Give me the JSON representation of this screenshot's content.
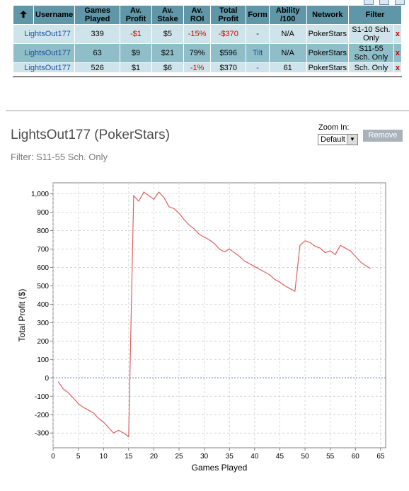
{
  "table": {
    "headers": [
      "Username",
      "Games Played",
      "Av. Profit",
      "Av. Stake",
      "Av. ROI",
      "Total Profit",
      "Form",
      "Ability /100",
      "Network",
      "Filter"
    ],
    "rows": [
      {
        "username": "LightsOut177",
        "games": "339",
        "av_profit": "-$1",
        "av_stake": "$5",
        "av_roi": "-15%",
        "total_profit": "-$370",
        "form": "-",
        "ability": "N/A",
        "network": "PokerStars",
        "filter": "S1-10 Sch. Only",
        "remove": "x"
      },
      {
        "username": "LightsOut177",
        "games": "63",
        "av_profit": "$9",
        "av_stake": "$21",
        "av_roi": "79%",
        "total_profit": "$596",
        "form": "Tilt",
        "ability": "N/A",
        "network": "PokerStars",
        "filter": "S11-55 Sch. Only",
        "remove": "x"
      },
      {
        "username": "LightsOut177",
        "games": "526",
        "av_profit": "$1",
        "av_stake": "$6",
        "av_roi": "-1%",
        "total_profit": "$370",
        "form": "-",
        "ability": "61",
        "network": "PokerStars",
        "filter": "Sch. Only",
        "remove": "x"
      }
    ]
  },
  "detail": {
    "title": "LightsOut177 (PokerStars)",
    "filter": "Filter: S11-55 Sch. Only",
    "zoom_label": "Zoom In:",
    "zoom_value": "Default",
    "remove_label": "Remove"
  },
  "colors": {
    "line": "#e06060",
    "zero_line": "#5a6aa8",
    "grid": "#c8c8c8"
  },
  "chart_data": {
    "type": "line",
    "xlabel": "Games Played",
    "ylabel": "Total Profit ($)",
    "xlim": [
      0,
      66
    ],
    "ylim": [
      -380,
      1060
    ],
    "x_ticks": [
      0,
      5,
      10,
      15,
      20,
      25,
      30,
      35,
      40,
      45,
      50,
      55,
      60,
      65
    ],
    "y_ticks": [
      -300,
      -200,
      -100,
      0,
      100,
      200,
      300,
      400,
      500,
      600,
      700,
      800,
      900,
      1000
    ],
    "y_tick_labels": [
      "-300",
      "-200",
      "-100",
      "0",
      "100",
      "200",
      "300",
      "400",
      "500",
      "600",
      "700",
      "800",
      "900",
      "1,000"
    ],
    "grid": true,
    "series": [
      {
        "x": [
          1,
          2,
          3,
          4,
          5,
          6,
          7,
          8,
          9,
          10,
          11,
          12,
          13,
          14,
          15,
          16,
          17,
          18,
          19,
          20,
          21,
          22,
          23,
          24,
          25,
          26,
          27,
          28,
          29,
          30,
          31,
          32,
          33,
          34,
          35,
          36,
          37,
          38,
          39,
          40,
          41,
          42,
          43,
          44,
          45,
          46,
          47,
          48,
          49,
          50,
          51,
          52,
          53,
          54,
          55,
          56,
          57,
          58,
          59,
          60,
          61,
          62,
          63
        ],
        "y": [
          -20,
          -60,
          -80,
          -110,
          -140,
          -160,
          -175,
          -190,
          -220,
          -240,
          -270,
          -300,
          -285,
          -300,
          -320,
          990,
          960,
          1010,
          990,
          970,
          1010,
          980,
          930,
          920,
          895,
          860,
          830,
          810,
          780,
          765,
          750,
          730,
          700,
          685,
          700,
          680,
          660,
          635,
          620,
          605,
          590,
          575,
          560,
          535,
          520,
          500,
          485,
          470,
          720,
          745,
          735,
          715,
          705,
          680,
          690,
          670,
          720,
          705,
          690,
          660,
          630,
          610,
          595
        ]
      }
    ]
  }
}
